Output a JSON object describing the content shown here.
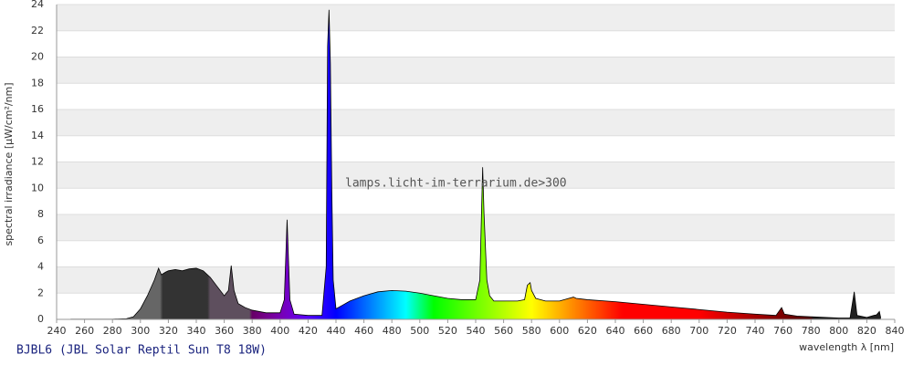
{
  "chart_data": {
    "type": "spectrum",
    "title": "BJBL6 (JBL Solar Reptil Sun T8 18W)",
    "watermark": "lamps.licht-im-terrarium.de>300",
    "x_label": "wavelength λ [nm]",
    "y_label": "spectral irradiance [µW/cm²/nm]",
    "x": [
      250,
      260,
      270,
      280,
      290,
      295,
      300,
      305,
      310,
      313,
      315,
      318,
      320,
      325,
      330,
      335,
      340,
      345,
      350,
      355,
      360,
      363,
      365,
      367,
      370,
      375,
      380,
      390,
      400,
      403,
      405,
      407,
      410,
      420,
      430,
      433,
      434,
      435,
      436,
      437,
      438,
      440,
      445,
      450,
      460,
      470,
      480,
      490,
      500,
      510,
      520,
      530,
      540,
      543,
      545,
      546,
      548,
      550,
      553,
      560,
      570,
      575,
      577,
      579,
      580,
      583,
      590,
      600,
      610,
      612,
      620,
      640,
      660,
      680,
      700,
      720,
      740,
      755,
      759,
      761,
      770,
      780,
      800,
      808,
      811,
      813,
      820,
      825,
      827,
      829,
      830
    ],
    "values": [
      0.02,
      0.02,
      0.02,
      0.02,
      0.05,
      0.2,
      0.8,
      1.8,
      3.0,
      3.9,
      3.4,
      3.6,
      3.7,
      3.8,
      3.7,
      3.85,
      3.9,
      3.7,
      3.2,
      2.5,
      1.8,
      2.2,
      4.1,
      2.2,
      1.2,
      0.9,
      0.7,
      0.5,
      0.5,
      1.5,
      7.6,
      1.5,
      0.4,
      0.3,
      0.3,
      4,
      20.8,
      23.6,
      19.5,
      10,
      3,
      0.8,
      1.1,
      1.4,
      1.8,
      2.1,
      2.2,
      2.15,
      2.0,
      1.8,
      1.6,
      1.5,
      1.5,
      3,
      11.6,
      8,
      3,
      1.8,
      1.4,
      1.4,
      1.4,
      1.5,
      2.6,
      2.8,
      2.2,
      1.6,
      1.4,
      1.4,
      1.7,
      1.6,
      1.5,
      1.35,
      1.15,
      0.95,
      0.75,
      0.55,
      0.4,
      0.3,
      0.9,
      0.4,
      0.25,
      0.2,
      0.1,
      0.1,
      2.1,
      0.3,
      0.15,
      0.3,
      0.35,
      0.6,
      0.1
    ],
    "xlim": [
      240,
      840
    ],
    "ylim": [
      0,
      24
    ],
    "xticks": [
      240,
      260,
      280,
      300,
      320,
      340,
      360,
      380,
      400,
      420,
      440,
      460,
      480,
      500,
      520,
      540,
      560,
      580,
      600,
      620,
      640,
      660,
      680,
      700,
      720,
      740,
      760,
      780,
      800,
      820,
      840
    ],
    "yticks": [
      0,
      2,
      4,
      6,
      8,
      10,
      12,
      14,
      16,
      18,
      20,
      22,
      24
    ]
  }
}
